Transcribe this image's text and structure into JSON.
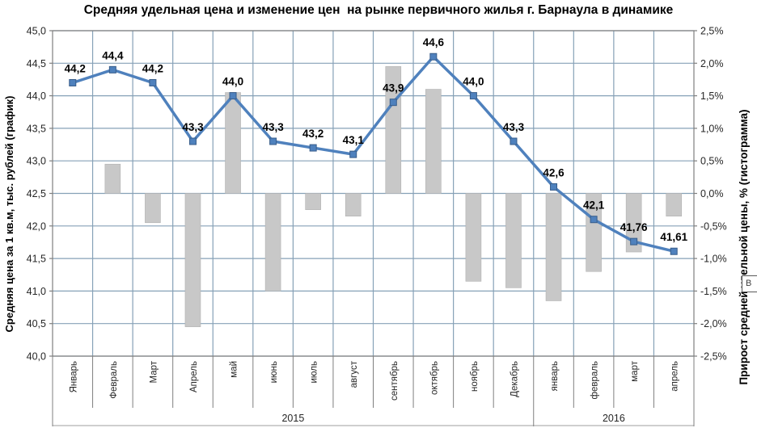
{
  "title": "Средняя удельная цена и изменение цен  на рынке первичного жилья г. Барнаула в динамике",
  "artifact": {
    "label": "В"
  },
  "chart_data": {
    "type": "combo",
    "categories": [
      "Январь",
      "Февраль",
      "Март",
      "Апрель",
      "май",
      "июнь",
      "июль",
      "август",
      "сентябрь",
      "октябрь",
      "ноябрь",
      "Декабрь",
      "январь",
      "февраль",
      "март",
      "апрель"
    ],
    "category_groups": [
      {
        "label": "2015",
        "span": 12
      },
      {
        "label": "2016",
        "span": 4
      }
    ],
    "series": [
      {
        "name": "Средняя цена за 1 кв.м, тыс. рублей",
        "type": "line",
        "axis": "left",
        "values": [
          44.2,
          44.4,
          44.2,
          43.3,
          44.0,
          43.3,
          43.2,
          43.1,
          43.9,
          44.6,
          44.0,
          43.3,
          42.6,
          42.1,
          41.76,
          41.61
        ],
        "labels": [
          "44,2",
          "44,4",
          "44,2",
          "43,3",
          "44,0",
          "43,3",
          "43,2",
          "43,1",
          "43,9",
          "44,6",
          "44,0",
          "43,3",
          "42,6",
          "42,1",
          "41,76",
          "41,61"
        ]
      },
      {
        "name": "Прирост средней удельной цены, %",
        "type": "bar",
        "axis": "right",
        "values": [
          null,
          0.45,
          -0.45,
          -2.05,
          1.55,
          -1.5,
          -0.25,
          -0.35,
          1.95,
          1.6,
          -1.35,
          -1.45,
          -1.65,
          -1.2,
          -0.9,
          -0.35
        ]
      }
    ],
    "y_left": {
      "title": "Средняя цена за 1 кв.м, тыс. рублей (график)",
      "min": 40.0,
      "max": 45.0,
      "step": 0.5,
      "ticks": [
        "45,0",
        "44,5",
        "44,0",
        "43,5",
        "43,0",
        "42,5",
        "42,0",
        "41,5",
        "41,0",
        "40,5",
        "40,0"
      ]
    },
    "y_right": {
      "title": "Прирост средней удельной цены, % (гистограмма)",
      "min": -2.5,
      "max": 2.5,
      "step": 0.5,
      "ticks": [
        "2,5%",
        "2,0%",
        "1,5%",
        "1,0%",
        "0,5%",
        "0,0%",
        "-0,5%",
        "-1,0%",
        "-1,5%",
        "-2,0%",
        "-2,5%"
      ]
    },
    "grid": true,
    "legend": "none",
    "colors": {
      "line": "#4f81bd",
      "marker_border": "#385d8a",
      "bar": "#c8c8c8",
      "bar_border": "#b2b2b2",
      "gridline": "#86a1b7",
      "axis": "#7f7f7f",
      "text": "#262626",
      "label": "#000000"
    }
  }
}
